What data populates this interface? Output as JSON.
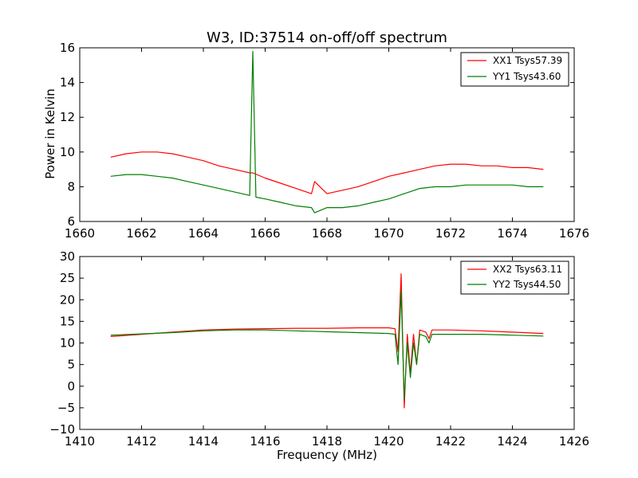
{
  "chart_data": [
    {
      "type": "line",
      "title": "W3, ID:37514 on-off/off spectrum",
      "xlabel": "",
      "ylabel": "Power in Kelvin",
      "xlim": [
        1660,
        1676
      ],
      "ylim": [
        6,
        16
      ],
      "xticks": [
        "1660",
        "1662",
        "1664",
        "1666",
        "1668",
        "1670",
        "1672",
        "1674",
        "1676"
      ],
      "yticks": [
        "6",
        "8",
        "10",
        "12",
        "14",
        "16"
      ],
      "grid": false,
      "legend_position": "top-right",
      "series": [
        {
          "name": "XX1 Tsys57.39",
          "color": "#ff0000",
          "x": [
            1661.0,
            1661.5,
            1662.0,
            1662.5,
            1663.0,
            1663.5,
            1664.0,
            1664.5,
            1665.0,
            1665.5,
            1665.6,
            1666.0,
            1666.5,
            1667.0,
            1667.5,
            1667.6,
            1668.0,
            1668.5,
            1669.0,
            1669.5,
            1670.0,
            1670.5,
            1671.0,
            1671.5,
            1672.0,
            1672.5,
            1673.0,
            1673.5,
            1674.0,
            1674.5,
            1675.0
          ],
          "y": [
            9.7,
            9.9,
            10.0,
            10.0,
            9.9,
            9.7,
            9.5,
            9.2,
            9.0,
            8.8,
            8.8,
            8.5,
            8.2,
            7.9,
            7.6,
            8.3,
            7.6,
            7.8,
            8.0,
            8.3,
            8.6,
            8.8,
            9.0,
            9.2,
            9.3,
            9.3,
            9.2,
            9.2,
            9.1,
            9.1,
            9.0
          ]
        },
        {
          "name": "YY1 Tsys43.60",
          "color": "#008000",
          "x": [
            1661.0,
            1661.5,
            1662.0,
            1662.5,
            1663.0,
            1663.5,
            1664.0,
            1664.5,
            1665.0,
            1665.5,
            1665.6,
            1665.7,
            1666.0,
            1666.5,
            1667.0,
            1667.5,
            1667.6,
            1668.0,
            1668.5,
            1669.0,
            1669.5,
            1670.0,
            1670.5,
            1671.0,
            1671.5,
            1672.0,
            1672.5,
            1673.0,
            1673.5,
            1674.0,
            1674.5,
            1675.0
          ],
          "y": [
            8.6,
            8.7,
            8.7,
            8.6,
            8.5,
            8.3,
            8.1,
            7.9,
            7.7,
            7.5,
            15.8,
            7.4,
            7.3,
            7.1,
            6.9,
            6.8,
            6.5,
            6.8,
            6.8,
            6.9,
            7.1,
            7.3,
            7.6,
            7.9,
            8.0,
            8.0,
            8.1,
            8.1,
            8.1,
            8.1,
            8.0,
            8.0
          ]
        }
      ]
    },
    {
      "type": "line",
      "title": "",
      "xlabel": "Frequency (MHz)",
      "ylabel": "",
      "xlim": [
        1410,
        1426
      ],
      "ylim": [
        -10,
        30
      ],
      "xticks": [
        "1410",
        "1412",
        "1414",
        "1416",
        "1418",
        "1420",
        "1422",
        "1424",
        "1426"
      ],
      "yticks": [
        "−10",
        "−5",
        "0",
        "5",
        "10",
        "15",
        "20",
        "25",
        "30"
      ],
      "grid": false,
      "legend_position": "top-right",
      "series": [
        {
          "name": "XX2 Tsys63.11",
          "color": "#ff0000",
          "x": [
            1411.0,
            1412.0,
            1413.0,
            1414.0,
            1415.0,
            1416.0,
            1417.0,
            1418.0,
            1419.0,
            1420.0,
            1420.2,
            1420.3,
            1420.4,
            1420.5,
            1420.6,
            1420.7,
            1420.8,
            1420.9,
            1421.0,
            1421.2,
            1421.3,
            1421.4,
            1422.0,
            1423.0,
            1424.0,
            1425.0
          ],
          "y": [
            11.5,
            12.0,
            12.5,
            13.0,
            13.2,
            13.3,
            13.4,
            13.4,
            13.5,
            13.5,
            13.3,
            8.0,
            26.0,
            -5.0,
            12.0,
            3.0,
            12.0,
            5.0,
            13.0,
            12.5,
            11.0,
            13.0,
            13.0,
            12.8,
            12.5,
            12.2
          ]
        },
        {
          "name": "YY2 Tsys44.50",
          "color": "#008000",
          "x": [
            1411.0,
            1412.0,
            1413.0,
            1414.0,
            1415.0,
            1416.0,
            1417.0,
            1418.0,
            1419.0,
            1420.0,
            1420.2,
            1420.3,
            1420.4,
            1420.5,
            1420.6,
            1420.7,
            1420.8,
            1420.9,
            1421.0,
            1421.2,
            1421.3,
            1421.4,
            1422.0,
            1423.0,
            1424.0,
            1425.0
          ],
          "y": [
            11.8,
            12.1,
            12.4,
            12.8,
            13.0,
            13.0,
            12.8,
            12.6,
            12.4,
            12.2,
            12.0,
            5.0,
            22.0,
            -3.0,
            10.0,
            2.0,
            10.0,
            5.0,
            12.0,
            11.5,
            10.0,
            12.0,
            12.0,
            12.0,
            11.8,
            11.6
          ]
        }
      ]
    }
  ]
}
